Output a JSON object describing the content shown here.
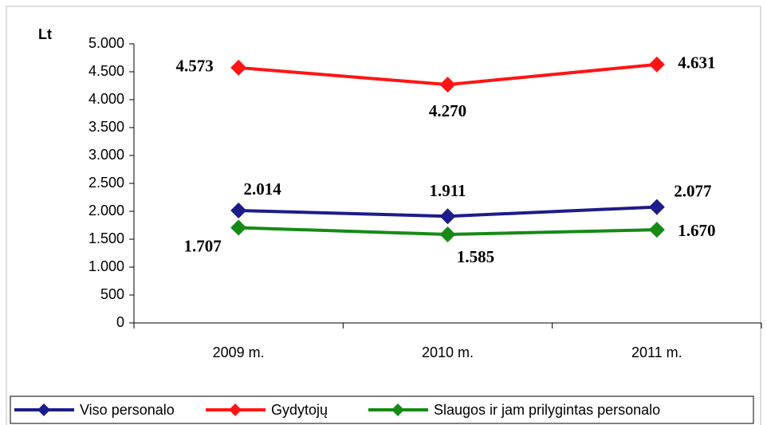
{
  "chart_data": {
    "type": "line",
    "y_axis_label": "Lt",
    "categories": [
      "2009 m.",
      "2010 m.",
      "2011 m."
    ],
    "series": [
      {
        "name": "Viso personalo",
        "color": "#1c1c8a",
        "values": [
          2014,
          1911,
          2077
        ],
        "value_labels": [
          "2.014",
          "1.911",
          "2.077"
        ]
      },
      {
        "name": "Gydytojų",
        "color": "#ff1414",
        "values": [
          4573,
          4270,
          4631
        ],
        "value_labels": [
          "4.573",
          "4.270",
          "4.631"
        ]
      },
      {
        "name": "Slaugos ir jam prilygintas personalo",
        "color": "#158a15",
        "values": [
          1707,
          1585,
          1670
        ],
        "value_labels": [
          "1.707",
          "1.585",
          "1.670"
        ]
      }
    ],
    "ylim": [
      0,
      5000
    ],
    "yticks": [
      0,
      500,
      {
        "value": 1000,
        "label": "1.000"
      },
      {
        "value": 1500,
        "label": "1.500"
      },
      {
        "value": 2000,
        "label": "2.000"
      },
      {
        "value": 2500,
        "label": "2.500"
      },
      {
        "value": 3000,
        "label": "3.000"
      },
      {
        "value": 3500,
        "label": "3.500"
      },
      {
        "value": 4000,
        "label": "4.000"
      },
      {
        "value": 4500,
        "label": "4.500"
      },
      {
        "value": 5000,
        "label": "5.000"
      }
    ],
    "legend": "bottom"
  }
}
